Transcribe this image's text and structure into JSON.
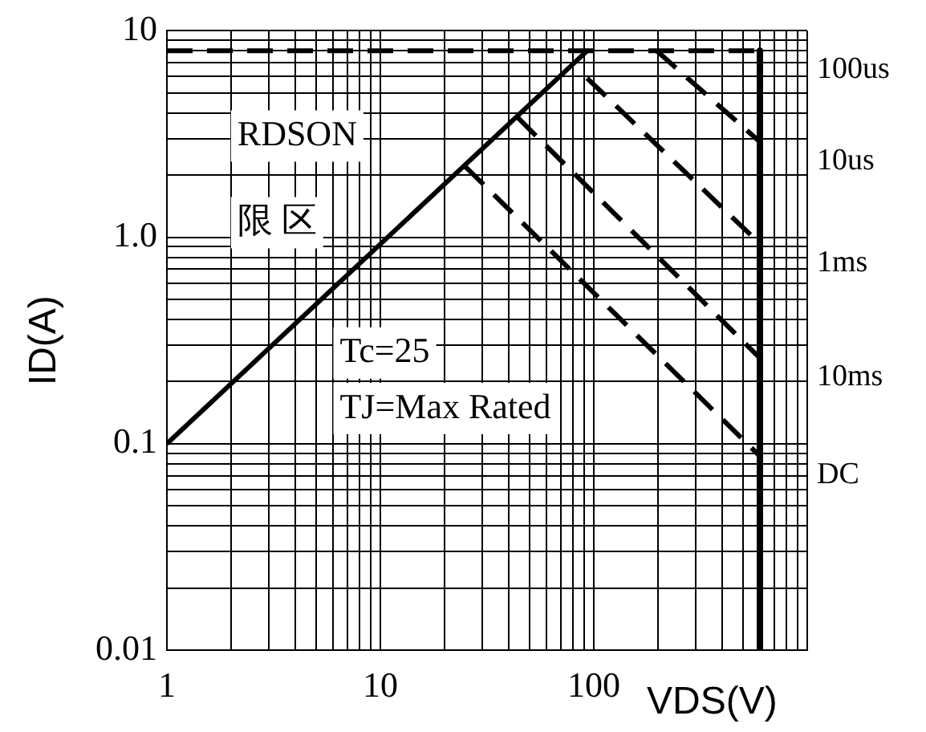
{
  "chart_data": {
    "type": "line",
    "xlabel": "VDS(V)",
    "ylabel": "ID(A)",
    "log": "xy",
    "grid": true,
    "legend": false,
    "marker": "none",
    "line_style": "solid",
    "xlim": [
      1,
      1000
    ],
    "ylim": [
      0.01,
      10
    ],
    "xticks": [
      1,
      {
        "value": 2,
        "label": null
      },
      {
        "value": 3,
        "label": null
      },
      {
        "value": 4,
        "label": null
      },
      {
        "value": 5,
        "label": null
      },
      {
        "value": 6,
        "label": null
      },
      {
        "value": 7,
        "label": null
      },
      {
        "value": 8,
        "label": null
      },
      {
        "value": 9,
        "label": null
      },
      10,
      {
        "value": 20,
        "label": null
      },
      {
        "value": 30,
        "label": null
      },
      {
        "value": 40,
        "label": null
      },
      {
        "value": 50,
        "label": null
      },
      {
        "value": 60,
        "label": null
      },
      {
        "value": 70,
        "label": null
      },
      {
        "value": 80,
        "label": null
      },
      {
        "value": 90,
        "label": null
      },
      100,
      {
        "value": 200,
        "label": null
      },
      {
        "value": 300,
        "label": null
      },
      {
        "value": 400,
        "label": null
      },
      {
        "value": 500,
        "label": null
      },
      {
        "value": 600,
        "label": null
      },
      {
        "value": 700,
        "label": null
      },
      {
        "value": 800,
        "label": null
      },
      {
        "value": 900,
        "label": null
      },
      {
        "value": 1000,
        "label": null
      }
    ],
    "yticks": [
      0.01,
      {
        "value": 0.02,
        "label": null
      },
      {
        "value": 0.03,
        "label": null
      },
      {
        "value": 0.04,
        "label": null
      },
      {
        "value": 0.05,
        "label": null
      },
      {
        "value": 0.06,
        "label": null
      },
      {
        "value": 0.07,
        "label": null
      },
      {
        "value": 0.08,
        "label": null
      },
      {
        "value": 0.09,
        "label": null
      },
      0.1,
      {
        "value": 0.2,
        "label": null
      },
      {
        "value": 0.3,
        "label": null
      },
      {
        "value": 0.4,
        "label": null
      },
      {
        "value": 0.5,
        "label": null
      },
      {
        "value": 0.6,
        "label": null
      },
      {
        "value": 0.7,
        "label": null
      },
      {
        "value": 0.8,
        "label": null
      },
      {
        "value": 0.9,
        "label": null
      },
      {
        "value": 1,
        "label": "1.0"
      },
      {
        "value": 2,
        "label": null
      },
      {
        "value": 3,
        "label": null
      },
      {
        "value": 4,
        "label": null
      },
      {
        "value": 5,
        "label": null
      },
      {
        "value": 6,
        "label": null
      },
      {
        "value": 7,
        "label": null
      },
      {
        "value": 8,
        "label": null
      },
      {
        "value": 9,
        "label": null
      },
      10
    ],
    "annotations": [
      "RDSON",
      "限 区",
      "Tc=25",
      "TJ=Max Rated"
    ],
    "series": [
      {
        "color": "#000000",
        "x": [
          1,
          93
        ],
        "values": [
          0.1,
          8
        ]
      },
      {
        "name": "100us",
        "color": "#000000",
        "line_style": "dashed",
        "x": [
          1,
          600
        ],
        "values": [
          8,
          8
        ]
      },
      {
        "name": "10us",
        "color": "#000000",
        "line_style": "dashed",
        "x": [
          197,
          600
        ],
        "values": [
          8,
          2.9
        ]
      },
      {
        "name": "1ms",
        "color": "#000000",
        "line_style": "dashed",
        "x": [
          93,
          600
        ],
        "values": [
          5.9,
          0.93
        ]
      },
      {
        "name": "10ms",
        "color": "#000000",
        "line_style": "dashed",
        "x": [
          44,
          600
        ],
        "values": [
          3.8,
          0.26
        ]
      },
      {
        "name": "DC",
        "color": "#000000",
        "line_style": "dashed",
        "x": [
          25,
          600
        ],
        "values": [
          2.2,
          0.087
        ]
      },
      {
        "color": "#000000",
        "x": [
          600,
          600
        ],
        "values": [
          8,
          0.01
        ]
      }
    ]
  }
}
